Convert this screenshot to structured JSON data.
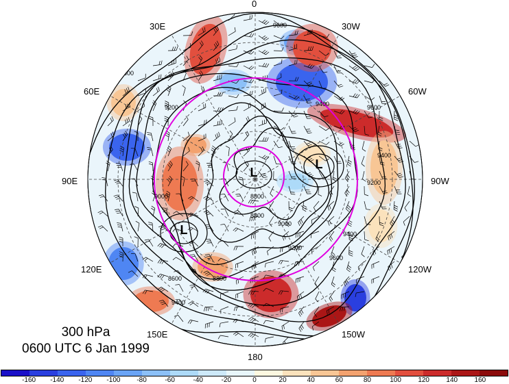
{
  "title": {
    "level": "300 hPa",
    "datetime": "0600 UTC 6 Jan 1999"
  },
  "longitude_labels": [
    {
      "key": "0",
      "text": "0"
    },
    {
      "key": "30w",
      "text": "30W"
    },
    {
      "key": "60w",
      "text": "60W"
    },
    {
      "key": "90w",
      "text": "90W"
    },
    {
      "key": "120w",
      "text": "120W"
    },
    {
      "key": "150w",
      "text": "150W"
    },
    {
      "key": "180",
      "text": "180"
    },
    {
      "key": "150e",
      "text": "150E"
    },
    {
      "key": "120e",
      "text": "120E"
    },
    {
      "key": "90e",
      "text": "90E"
    },
    {
      "key": "60e",
      "text": "60E"
    },
    {
      "key": "30e",
      "text": "30E"
    }
  ],
  "contour_labels": [
    "9600",
    "9400",
    "9200",
    "9000",
    "8800",
    "8600"
  ],
  "low_marker": "L",
  "colorbar": {
    "tick_labels": [
      "-160",
      "-140",
      "-120",
      "-100",
      "-80",
      "-60",
      "-40",
      "-20",
      "0",
      "20",
      "40",
      "60",
      "80",
      "100",
      "120",
      "140",
      "160"
    ],
    "colors": [
      "#1a10c8",
      "#2a3fdf",
      "#3a64ee",
      "#4f86f3",
      "#6aa4f6",
      "#8cc0f8",
      "#addaf8",
      "#cde9f9",
      "#e8f6fb",
      "#fdf8e0",
      "#fbe2bc",
      "#f8c695",
      "#f3a26f",
      "#ee7a52",
      "#e24f3e",
      "#cc2b2b",
      "#ab1616",
      "#8c0b0b"
    ]
  },
  "overlay_color": "#e000e0"
}
